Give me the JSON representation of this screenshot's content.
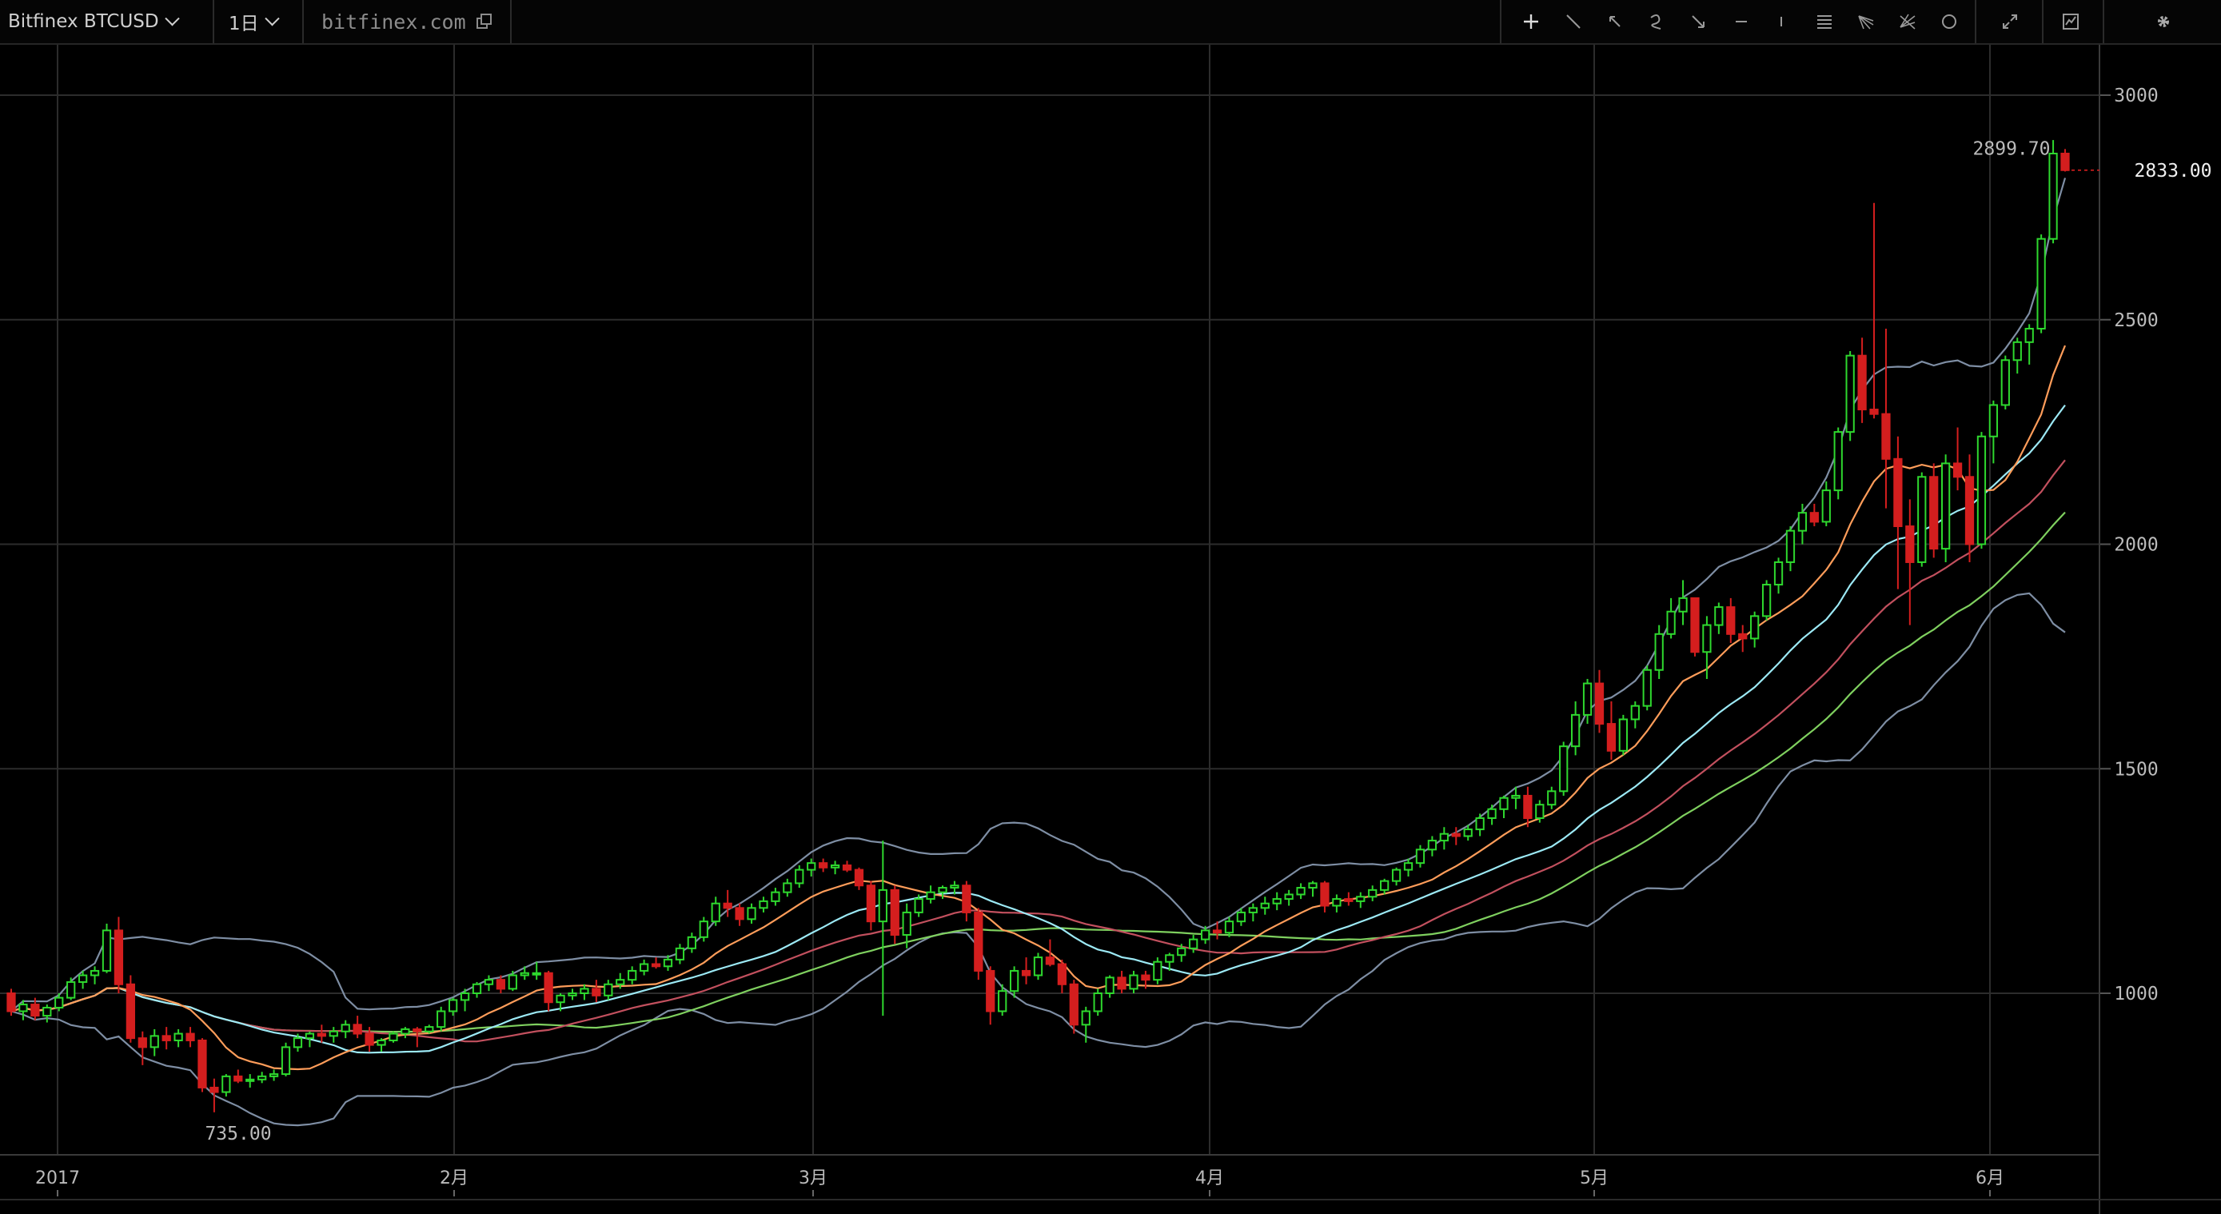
{
  "toolbar": {
    "symbol_label": "Bitfinex BTCUSD",
    "interval_label": "1日",
    "domain_label": "bitfinex.com",
    "tools": [
      "crosshair-icon",
      "trend-line-icon",
      "arrow-icon",
      "brush-icon",
      "arrow-marker-icon",
      "horizontal-line-icon",
      "vertical-line-icon",
      "fib-retracement-icon",
      "pitchfork-icon",
      "gann-fan-icon",
      "ellipse-icon",
      "fullscreen-icon",
      "indicators-icon",
      "settings-icon"
    ]
  },
  "colors": {
    "up": "#2ed82e",
    "down": "#d41e1e",
    "bb": "#7e8ea4",
    "ma_short": "#ff9d5a",
    "ma_mid": "#9ce9f5",
    "ma_long": "#c2505e",
    "ma_longer": "#7fd05f",
    "grid": "#2c2c2c"
  },
  "chart_data": {
    "type": "candlestick",
    "ylim": [
      700,
      3100
    ],
    "y_ticks": [
      "1000",
      "1500",
      "2000",
      "2500",
      "3000"
    ],
    "time_labels": [
      "2017",
      "2月",
      "3月",
      "4月",
      "5月",
      "6月"
    ],
    "last_price": "2833.00",
    "high_marker": "2899.70",
    "low_marker": "735.00",
    "candles": [
      [
        1000,
        1010,
        950,
        960
      ],
      [
        960,
        985,
        940,
        975
      ],
      [
        975,
        990,
        940,
        950
      ],
      [
        950,
        975,
        935,
        968
      ],
      [
        968,
        1000,
        960,
        990
      ],
      [
        990,
        1035,
        985,
        1025
      ],
      [
        1025,
        1050,
        1010,
        1040
      ],
      [
        1040,
        1060,
        1020,
        1050
      ],
      [
        1050,
        1155,
        1045,
        1140
      ],
      [
        1140,
        1170,
        1000,
        1020
      ],
      [
        1020,
        1040,
        890,
        900
      ],
      [
        900,
        915,
        840,
        880
      ],
      [
        880,
        920,
        860,
        905
      ],
      [
        905,
        925,
        875,
        895
      ],
      [
        895,
        920,
        880,
        910
      ],
      [
        910,
        925,
        880,
        895
      ],
      [
        895,
        900,
        780,
        790
      ],
      [
        790,
        810,
        735,
        780
      ],
      [
        780,
        820,
        770,
        815
      ],
      [
        815,
        830,
        800,
        805
      ],
      [
        805,
        820,
        790,
        808
      ],
      [
        808,
        825,
        800,
        815
      ],
      [
        815,
        830,
        805,
        820
      ],
      [
        820,
        890,
        815,
        880
      ],
      [
        880,
        910,
        870,
        900
      ],
      [
        900,
        915,
        880,
        910
      ],
      [
        910,
        930,
        890,
        905
      ],
      [
        905,
        925,
        890,
        915
      ],
      [
        915,
        940,
        900,
        930
      ],
      [
        930,
        950,
        900,
        910
      ],
      [
        910,
        925,
        870,
        885
      ],
      [
        885,
        900,
        870,
        895
      ],
      [
        895,
        915,
        890,
        910
      ],
      [
        910,
        925,
        900,
        920
      ],
      [
        920,
        925,
        880,
        915
      ],
      [
        915,
        930,
        910,
        925
      ],
      [
        925,
        970,
        915,
        960
      ],
      [
        960,
        990,
        950,
        985
      ],
      [
        985,
        1010,
        960,
        1000
      ],
      [
        1000,
        1025,
        990,
        1020
      ],
      [
        1020,
        1040,
        1005,
        1030
      ],
      [
        1030,
        1040,
        1000,
        1010
      ],
      [
        1010,
        1050,
        1005,
        1040
      ],
      [
        1040,
        1060,
        1030,
        1045
      ],
      [
        1045,
        1070,
        1030,
        1045
      ],
      [
        1045,
        1050,
        960,
        980
      ],
      [
        980,
        1000,
        960,
        995
      ],
      [
        995,
        1010,
        985,
        1000
      ],
      [
        1000,
        1020,
        985,
        1010
      ],
      [
        1010,
        1030,
        980,
        995
      ],
      [
        995,
        1030,
        985,
        1020
      ],
      [
        1020,
        1045,
        1010,
        1030
      ],
      [
        1030,
        1060,
        1020,
        1050
      ],
      [
        1050,
        1075,
        1040,
        1065
      ],
      [
        1065,
        1080,
        1055,
        1060
      ],
      [
        1060,
        1085,
        1050,
        1075
      ],
      [
        1075,
        1110,
        1065,
        1100
      ],
      [
        1100,
        1135,
        1090,
        1125
      ],
      [
        1125,
        1170,
        1115,
        1160
      ],
      [
        1160,
        1215,
        1150,
        1200
      ],
      [
        1200,
        1230,
        1170,
        1190
      ],
      [
        1190,
        1200,
        1150,
        1165
      ],
      [
        1165,
        1200,
        1155,
        1190
      ],
      [
        1190,
        1215,
        1180,
        1205
      ],
      [
        1205,
        1235,
        1195,
        1225
      ],
      [
        1225,
        1255,
        1215,
        1245
      ],
      [
        1245,
        1285,
        1235,
        1275
      ],
      [
        1275,
        1300,
        1260,
        1290
      ],
      [
        1290,
        1300,
        1270,
        1280
      ],
      [
        1280,
        1295,
        1265,
        1285
      ],
      [
        1285,
        1295,
        1270,
        1275
      ],
      [
        1275,
        1280,
        1230,
        1240
      ],
      [
        1240,
        1250,
        1140,
        1160
      ],
      [
        1160,
        1340,
        950,
        1230
      ],
      [
        1230,
        1240,
        1110,
        1130
      ],
      [
        1130,
        1200,
        1100,
        1180
      ],
      [
        1180,
        1220,
        1170,
        1210
      ],
      [
        1210,
        1240,
        1200,
        1225
      ],
      [
        1225,
        1240,
        1210,
        1235
      ],
      [
        1235,
        1250,
        1220,
        1240
      ],
      [
        1240,
        1250,
        1160,
        1180
      ],
      [
        1180,
        1190,
        1030,
        1050
      ],
      [
        1050,
        1060,
        930,
        960
      ],
      [
        960,
        1020,
        950,
        1005
      ],
      [
        1005,
        1060,
        990,
        1050
      ],
      [
        1050,
        1080,
        1020,
        1040
      ],
      [
        1040,
        1090,
        1030,
        1080
      ],
      [
        1080,
        1120,
        1060,
        1065
      ],
      [
        1065,
        1075,
        1000,
        1020
      ],
      [
        1020,
        1030,
        910,
        930
      ],
      [
        930,
        970,
        890,
        960
      ],
      [
        960,
        1010,
        950,
        1000
      ],
      [
        1000,
        1040,
        990,
        1035
      ],
      [
        1035,
        1050,
        1000,
        1010
      ],
      [
        1010,
        1050,
        1000,
        1040
      ],
      [
        1040,
        1050,
        1010,
        1030
      ],
      [
        1030,
        1080,
        1020,
        1070
      ],
      [
        1070,
        1090,
        1050,
        1085
      ],
      [
        1085,
        1110,
        1070,
        1100
      ],
      [
        1100,
        1130,
        1090,
        1120
      ],
      [
        1120,
        1150,
        1110,
        1140
      ],
      [
        1140,
        1160,
        1120,
        1135
      ],
      [
        1135,
        1170,
        1125,
        1160
      ],
      [
        1160,
        1190,
        1150,
        1180
      ],
      [
        1180,
        1200,
        1160,
        1190
      ],
      [
        1190,
        1215,
        1175,
        1200
      ],
      [
        1200,
        1225,
        1185,
        1210
      ],
      [
        1210,
        1230,
        1195,
        1220
      ],
      [
        1220,
        1245,
        1210,
        1235
      ],
      [
        1235,
        1250,
        1215,
        1245
      ],
      [
        1245,
        1250,
        1180,
        1195
      ],
      [
        1195,
        1220,
        1180,
        1210
      ],
      [
        1210,
        1225,
        1195,
        1205
      ],
      [
        1205,
        1225,
        1190,
        1215
      ],
      [
        1215,
        1240,
        1205,
        1230
      ],
      [
        1230,
        1255,
        1220,
        1250
      ],
      [
        1250,
        1280,
        1240,
        1275
      ],
      [
        1275,
        1300,
        1260,
        1290
      ],
      [
        1290,
        1330,
        1280,
        1320
      ],
      [
        1320,
        1350,
        1305,
        1340
      ],
      [
        1340,
        1370,
        1320,
        1355
      ],
      [
        1355,
        1370,
        1330,
        1350
      ],
      [
        1350,
        1375,
        1340,
        1365
      ],
      [
        1365,
        1400,
        1350,
        1390
      ],
      [
        1390,
        1420,
        1375,
        1410
      ],
      [
        1410,
        1440,
        1390,
        1435
      ],
      [
        1435,
        1460,
        1410,
        1440
      ],
      [
        1440,
        1460,
        1370,
        1390
      ],
      [
        1390,
        1430,
        1380,
        1420
      ],
      [
        1420,
        1460,
        1410,
        1450
      ],
      [
        1450,
        1560,
        1440,
        1550
      ],
      [
        1550,
        1650,
        1530,
        1620
      ],
      [
        1620,
        1700,
        1600,
        1690
      ],
      [
        1690,
        1720,
        1580,
        1600
      ],
      [
        1600,
        1650,
        1520,
        1540
      ],
      [
        1540,
        1620,
        1530,
        1610
      ],
      [
        1610,
        1650,
        1590,
        1640
      ],
      [
        1640,
        1730,
        1630,
        1720
      ],
      [
        1720,
        1820,
        1700,
        1800
      ],
      [
        1800,
        1880,
        1790,
        1850
      ],
      [
        1850,
        1920,
        1820,
        1880
      ],
      [
        1880,
        1880,
        1750,
        1760
      ],
      [
        1760,
        1840,
        1700,
        1820
      ],
      [
        1820,
        1870,
        1800,
        1860
      ],
      [
        1860,
        1880,
        1780,
        1800
      ],
      [
        1800,
        1820,
        1760,
        1790
      ],
      [
        1790,
        1850,
        1770,
        1840
      ],
      [
        1840,
        1920,
        1830,
        1910
      ],
      [
        1910,
        1970,
        1890,
        1960
      ],
      [
        1960,
        2040,
        1940,
        2030
      ],
      [
        2030,
        2090,
        2000,
        2070
      ],
      [
        2070,
        2090,
        2040,
        2050
      ],
      [
        2050,
        2140,
        2040,
        2120
      ],
      [
        2120,
        2260,
        2100,
        2250
      ],
      [
        2250,
        2430,
        2230,
        2420
      ],
      [
        2420,
        2460,
        2270,
        2300
      ],
      [
        2300,
        2760,
        2280,
        2290
      ],
      [
        2290,
        2480,
        2080,
        2190
      ],
      [
        2190,
        2240,
        1900,
        2040
      ],
      [
        2040,
        2100,
        1820,
        1960
      ],
      [
        1960,
        2160,
        1950,
        2150
      ],
      [
        2150,
        2180,
        1970,
        1990
      ],
      [
        1990,
        2200,
        1960,
        2180
      ],
      [
        2180,
        2260,
        2120,
        2150
      ],
      [
        2150,
        2200,
        1960,
        2000
      ],
      [
        2000,
        2250,
        1990,
        2240
      ],
      [
        2240,
        2320,
        2180,
        2310
      ],
      [
        2310,
        2420,
        2300,
        2410
      ],
      [
        2410,
        2460,
        2380,
        2450
      ],
      [
        2450,
        2490,
        2400,
        2480
      ],
      [
        2480,
        2690,
        2470,
        2680
      ],
      [
        2680,
        2900,
        2670,
        2870
      ],
      [
        2870,
        2880,
        2830,
        2833
      ]
    ],
    "indicators": [
      {
        "name": "BB",
        "type": "bollinger",
        "period": 20
      },
      {
        "name": "MA10",
        "type": "sma",
        "period": 10
      },
      {
        "name": "MA20",
        "type": "sma",
        "period": 20
      },
      {
        "name": "MA30",
        "type": "sma",
        "period": 30
      },
      {
        "name": "MA40",
        "type": "sma",
        "period": 40
      }
    ]
  }
}
